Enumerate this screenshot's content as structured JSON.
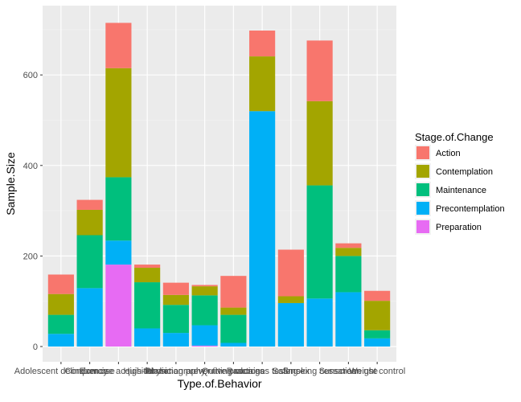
{
  "chart_data": {
    "type": "bar",
    "stacked": true,
    "xlabel": "Type.of.Behavior",
    "ylabel": "Sample.Size",
    "ylim": [
      0,
      735
    ],
    "yticks": [
      0,
      200,
      400,
      600
    ],
    "grid": true,
    "legend_position": "right",
    "legend_title": "Stage.of.Change",
    "categories": [
      "Adolescent delinquency",
      "Condom use",
      "Exercise acquisition",
      "High-fat diet",
      "Mammography",
      "Physician preventive practices",
      "Quitting cocaine",
      "Radon gas testing",
      "Safer sex",
      "Smoking cessation",
      "Sunscreen use",
      "Weight control"
    ],
    "series": [
      {
        "name": "Action",
        "color": "#F8766D",
        "values": [
          43,
          22,
          100,
          7,
          27,
          3,
          70,
          57,
          103,
          134,
          10,
          22
        ]
      },
      {
        "name": "Contemplation",
        "color": "#A3A500",
        "values": [
          46,
          56,
          241,
          32,
          22,
          20,
          16,
          121,
          15,
          186,
          18,
          65
        ]
      },
      {
        "name": "Maintenance",
        "color": "#00BF7D",
        "values": [
          42,
          117,
          140,
          102,
          62,
          66,
          62,
          0,
          0,
          250,
          80,
          18
        ]
      },
      {
        "name": "Precontemplation",
        "color": "#00B0F6",
        "values": [
          28,
          129,
          53,
          40,
          30,
          45,
          8,
          520,
          96,
          106,
          120,
          18
        ]
      },
      {
        "name": "Preparation",
        "color": "#E76BF3",
        "values": [
          0,
          0,
          181,
          0,
          0,
          2,
          0,
          0,
          0,
          0,
          0,
          0
        ]
      }
    ]
  }
}
